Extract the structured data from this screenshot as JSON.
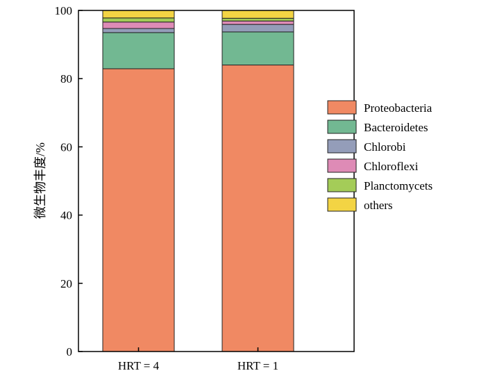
{
  "chart_data": {
    "type": "bar",
    "stacked": true,
    "categories": [
      "HRT = 4",
      "HRT = 1"
    ],
    "series": [
      {
        "name": "Proteobacteria",
        "color": "#f08963",
        "values": [
          82.9,
          84.0
        ]
      },
      {
        "name": "Bacteroidetes",
        "color": "#72b892",
        "values": [
          10.6,
          9.7
        ]
      },
      {
        "name": "Chlorobi",
        "color": "#949db9",
        "values": [
          1.2,
          2.2
        ]
      },
      {
        "name": "Chloroflexi",
        "color": "#de8bb6",
        "values": [
          1.9,
          1.0
        ]
      },
      {
        "name": "Planctomycets",
        "color": "#a4cc58",
        "values": [
          1.2,
          0.8
        ]
      },
      {
        "name": "others",
        "color": "#f3d444",
        "values": [
          2.2,
          2.3
        ]
      }
    ],
    "ylabel": "微生物丰度/%",
    "xlabel": "",
    "ylim": [
      0,
      100
    ],
    "yticks": [
      "0",
      "20",
      "40",
      "60",
      "80",
      "100"
    ],
    "legend": "right",
    "grid": false
  }
}
